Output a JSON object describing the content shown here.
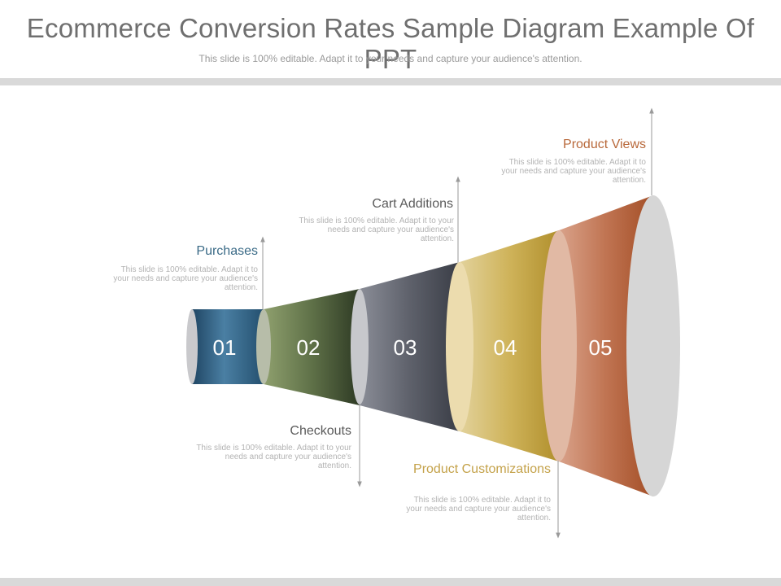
{
  "slide": {
    "title": "Ecommerce Conversion Rates Sample Diagram Example Of PPT",
    "subtitle": "This slide is 100% editable. Adapt it to your needs and capture your audience's attention."
  },
  "stages": [
    {
      "number": "01",
      "label": "Purchases",
      "description": "This slide is 100% editable. Adapt it to your needs and capture your audience's attention.",
      "color": "#2f5f82",
      "label_color": "#3b6b87"
    },
    {
      "number": "02",
      "label": "Checkouts",
      "description": "This slide is 100% editable. Adapt it to your needs and capture your audience's attention.",
      "color": "#58693f",
      "label_color": "#5b5b5b"
    },
    {
      "number": "03",
      "label": "Cart Additions",
      "description": "This slide is 100% editable. Adapt it to your needs and capture your audience's attention.",
      "color": "#5c5f6a",
      "label_color": "#5b5b5b"
    },
    {
      "number": "04",
      "label": "Product Customizations",
      "description": "This slide is 100% editable. Adapt it to your needs and capture your audience's attention.",
      "color": "#c6a83e",
      "label_color": "#c4a24a"
    },
    {
      "number": "05",
      "label": "Product Views",
      "description": "This slide is 100% editable. Adapt it to your needs and capture your audience's attention.",
      "color": "#b55a32",
      "label_color": "#b8683a"
    }
  ]
}
